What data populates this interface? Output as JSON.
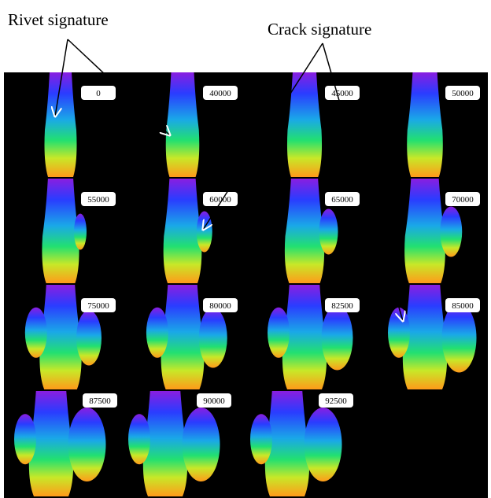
{
  "annotations": {
    "rivet": "Rivet signature",
    "crack": "Crack signature"
  },
  "panels": [
    "0",
    "40000",
    "45000",
    "50000",
    "55000",
    "60000",
    "65000",
    "70000",
    "75000",
    "80000",
    "82500",
    "85000",
    "87500",
    "90000",
    "92500"
  ]
}
